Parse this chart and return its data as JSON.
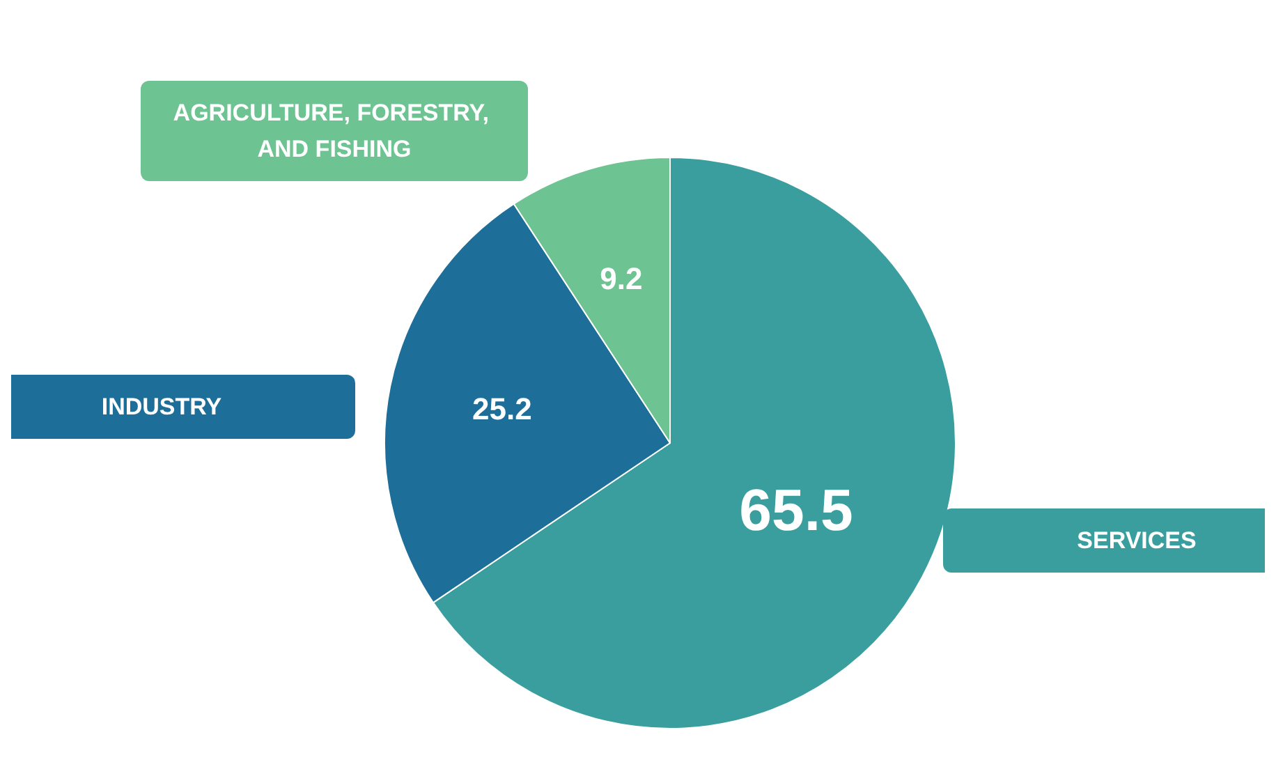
{
  "chart_data": {
    "type": "pie",
    "categories": [
      "SERVICES",
      "INDUSTRY",
      "AGRICULTURE, FORESTRY, AND FISHING"
    ],
    "values": [
      65.5,
      25.2,
      9.2
    ],
    "colors": [
      "#3a9e9f",
      "#1d6e98",
      "#6dc391"
    ],
    "data_labels": true,
    "legend": false
  }
}
